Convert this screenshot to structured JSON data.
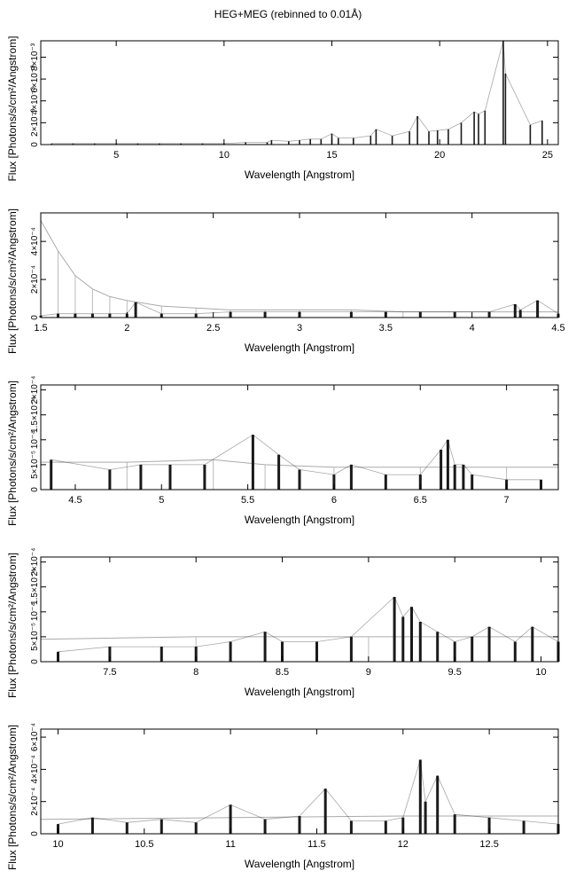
{
  "title": "HEG+MEG (rebinned to 0.01Å)",
  "chart_data": [
    {
      "type": "line",
      "xlabel": "Wavelength [Angstrom]",
      "ylabel": "Flux [Photons/s/cm²/Angstrom]",
      "xlim": [
        1.5,
        25.5
      ],
      "ylim": [
        0,
        0.0095
      ],
      "xticks": [
        5,
        10,
        15,
        20,
        25
      ],
      "yticks": [
        0,
        0.002,
        0.004,
        0.006,
        0.008
      ],
      "yticklabels": [
        "0",
        "2×10⁻³",
        "4×10⁻³",
        "6×10⁻³",
        "8×10⁻³"
      ],
      "grid": false,
      "series": [
        {
          "x": [
            2,
            3,
            4,
            5,
            6,
            7,
            8,
            9,
            10,
            11,
            12,
            12.2,
            13,
            13.5,
            14,
            14.5,
            15.0,
            15.3,
            16.0,
            16.8,
            17.05,
            17.8,
            18.6,
            18.97,
            19.5,
            19.9,
            20.4,
            21.0,
            21.6,
            21.8,
            22.1,
            22.95,
            23.05,
            24.2,
            24.75
          ],
          "y": [
            0.0001,
            0.0001,
            0.0001,
            0.0001,
            0.0001,
            0.0001,
            0.0001,
            0.0001,
            0.0001,
            0.0002,
            0.0002,
            0.0004,
            0.0003,
            0.0004,
            0.0005,
            0.0005,
            0.001,
            0.0006,
            0.0006,
            0.0008,
            0.0014,
            0.0008,
            0.0012,
            0.0026,
            0.0012,
            0.0013,
            0.0014,
            0.002,
            0.003,
            0.0028,
            0.0031,
            0.0095,
            0.0065,
            0.0018,
            0.0022
          ]
        }
      ]
    },
    {
      "type": "line",
      "xlabel": "Wavelength [Angstrom]",
      "ylabel": "Flux [Photons/s/cm²/Angstrom]",
      "xlim": [
        1.5,
        4.5
      ],
      "ylim": [
        0,
        0.00055
      ],
      "xticks": [
        1.5,
        2,
        2.5,
        3,
        3.5,
        4,
        4.5
      ],
      "yticks": [
        0,
        0.0002,
        0.0004
      ],
      "yticklabels": [
        "0",
        "2×10⁻⁴",
        "4×10⁻⁴"
      ],
      "grid": false,
      "series": [
        {
          "x": [
            1.5,
            1.6,
            1.7,
            1.8,
            1.9,
            2.0,
            2.05,
            2.2,
            2.4,
            2.6,
            2.8,
            3.0,
            3.3,
            3.5,
            3.7,
            3.9,
            4.1,
            4.25,
            4.28,
            4.38,
            4.5
          ],
          "y": [
            1e-05,
            2e-05,
            2e-05,
            2e-05,
            2e-05,
            2e-05,
            8e-05,
            2e-05,
            2e-05,
            3e-05,
            3e-05,
            3e-05,
            3e-05,
            3e-05,
            3e-05,
            3e-05,
            3e-05,
            7e-05,
            4e-05,
            9e-05,
            2e-05
          ]
        },
        {
          "x": [
            1.5,
            1.6,
            1.7,
            1.8,
            1.9,
            2.0,
            2.2,
            2.4,
            2.6,
            2.8,
            3.0,
            3.3,
            3.6,
            4.0,
            4.5
          ],
          "y": [
            0.00051,
            0.00035,
            0.00022,
            0.00015,
            0.00011,
            9e-05,
            6e-05,
            5e-05,
            4e-05,
            4e-05,
            4e-05,
            4e-05,
            3e-05,
            3e-05,
            3e-05
          ]
        }
      ]
    },
    {
      "type": "line",
      "xlabel": "Wavelength [Angstrom]",
      "ylabel": "Flux [Photons/s/cm²/Angstrom]",
      "xlim": [
        4.3,
        7.3
      ],
      "ylim": [
        0,
        0.00021
      ],
      "xticks": [
        4.5,
        5,
        5.5,
        6,
        6.5,
        7
      ],
      "yticks": [
        0,
        5e-05,
        0.0001,
        0.00015,
        0.0002
      ],
      "yticklabels": [
        "0",
        "5×10⁻⁵",
        "10⁻⁴",
        "1.5×10⁻⁴",
        "2×10⁻⁴"
      ],
      "grid": false,
      "series": [
        {
          "x": [
            4.36,
            4.7,
            4.88,
            5.05,
            5.25,
            5.53,
            5.68,
            5.8,
            6.0,
            6.1,
            6.3,
            6.5,
            6.62,
            6.66,
            6.7,
            6.75,
            6.8,
            7.0,
            7.2
          ],
          "y": [
            6e-05,
            4e-05,
            5e-05,
            5e-05,
            5e-05,
            0.00011,
            7e-05,
            4e-05,
            3e-05,
            5e-05,
            3e-05,
            3e-05,
            8e-05,
            0.0001,
            5e-05,
            5e-05,
            3e-05,
            2e-05,
            2e-05
          ]
        },
        {
          "x": [
            4.3,
            4.8,
            5.3,
            5.6,
            6.0,
            6.5,
            7.0,
            7.3
          ],
          "y": [
            5.5e-05,
            5.5e-05,
            6e-05,
            5e-05,
            4.5e-05,
            4.5e-05,
            4.5e-05,
            4.5e-05
          ]
        }
      ]
    },
    {
      "type": "line",
      "xlabel": "Wavelength [Angstrom]",
      "ylabel": "Flux [Photons/s/cm²/Angstrom]",
      "xlim": [
        7.1,
        10.1
      ],
      "ylim": [
        0,
        0.00021
      ],
      "xticks": [
        7.5,
        8,
        8.5,
        9,
        9.5,
        10
      ],
      "yticks": [
        0,
        5e-05,
        0.0001,
        0.00015,
        0.0002
      ],
      "yticklabels": [
        "0",
        "5×10⁻⁵",
        "10⁻⁴",
        "1.5×10⁻⁴",
        "2×10⁻⁴"
      ],
      "grid": false,
      "series": [
        {
          "x": [
            7.2,
            7.5,
            7.8,
            8.0,
            8.2,
            8.4,
            8.5,
            8.7,
            8.9,
            9.15,
            9.2,
            9.25,
            9.3,
            9.4,
            9.5,
            9.6,
            9.7,
            9.85,
            9.95,
            10.1
          ],
          "y": [
            2e-05,
            3e-05,
            3e-05,
            3e-05,
            4e-05,
            6e-05,
            4e-05,
            4e-05,
            5e-05,
            0.00013,
            9e-05,
            0.00011,
            8e-05,
            6e-05,
            4e-05,
            5e-05,
            7e-05,
            4e-05,
            7e-05,
            4e-05
          ]
        },
        {
          "x": [
            7.1,
            8.0,
            9.0,
            10.1
          ],
          "y": [
            4.5e-05,
            5e-05,
            5e-05,
            5e-05
          ]
        }
      ]
    },
    {
      "type": "line",
      "xlabel": "Wavelength [Angstrom]",
      "ylabel": "Flux [Photons/s/cm²/Angstrom]",
      "xlim": [
        9.9,
        12.9
      ],
      "ylim": [
        0,
        0.00065
      ],
      "xticks": [
        10,
        10.5,
        11,
        11.5,
        12,
        12.5
      ],
      "yticks": [
        0,
        0.0002,
        0.0004,
        0.0006
      ],
      "yticklabels": [
        "0",
        "2×10⁻⁴",
        "4×10⁻⁴",
        "6×10⁻⁴"
      ],
      "grid": false,
      "series": [
        {
          "x": [
            10.0,
            10.2,
            10.4,
            10.6,
            10.8,
            11.0,
            11.2,
            11.4,
            11.55,
            11.7,
            11.9,
            12.0,
            12.1,
            12.13,
            12.2,
            12.3,
            12.5,
            12.7,
            12.9
          ],
          "y": [
            6e-05,
            0.0001,
            7e-05,
            9e-05,
            7e-05,
            0.00018,
            9e-05,
            0.00011,
            0.00028,
            8e-05,
            8e-05,
            0.0001,
            0.00046,
            0.0002,
            0.00036,
            0.00012,
            0.0001,
            8e-05,
            6e-05
          ]
        },
        {
          "x": [
            9.9,
            11.0,
            12.0,
            12.9
          ],
          "y": [
            9e-05,
            0.0001,
            0.00011,
            0.00011
          ]
        }
      ]
    }
  ]
}
